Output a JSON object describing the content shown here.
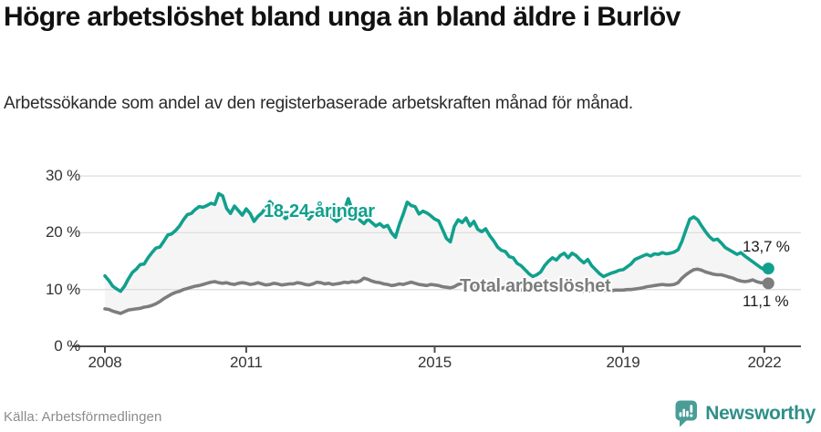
{
  "header": {
    "title": "Högre arbetslöshet bland unga än bland äldre i Burlöv",
    "subtitle": "Arbetssökande som andel av den registerbaserade arbetskraften månad för månad."
  },
  "footer": {
    "source": "Källa: Arbetsförmedlingen",
    "brand_name": "Newsworthy"
  },
  "colors": {
    "young_line": "#11a08d",
    "total_line": "#7d7d7d",
    "grid": "#dedede",
    "axis": "#4d4d4d",
    "between_fill": "#f5f5f5",
    "value_text": "#1a1a1a",
    "brand_icon": "#4a9d97",
    "brand_text": "#2f8f89"
  },
  "chart_data": {
    "type": "line",
    "title": "Högre arbetslöshet bland unga än bland äldre i Burlöv",
    "subtitle": "Arbetssökande som andel av den registerbaserade arbetskraften månad för månad.",
    "frequency": "monthly",
    "x_start": "2008-01",
    "x_end": "2022-02",
    "x_tick_years": [
      2008,
      2011,
      2015,
      2019,
      2022
    ],
    "y_ticks": [
      {
        "value": 0,
        "label": "0 %"
      },
      {
        "value": 10,
        "label": "10 %"
      },
      {
        "value": 20,
        "label": "20 %"
      },
      {
        "value": 30,
        "label": "30 %"
      }
    ],
    "ylim": [
      0,
      30
    ],
    "grid": true,
    "legend_position": "inline-labels",
    "fill_between_series": true,
    "series": [
      {
        "name": "18-24-åringar",
        "color": "#11a08d",
        "end_label": "13,7 %",
        "last_value": 13.7,
        "values": [
          12.4,
          11.6,
          10.6,
          10.1,
          9.7,
          10.6,
          11.9,
          13.0,
          13.6,
          14.4,
          14.5,
          15.6,
          16.5,
          17.3,
          17.5,
          18.5,
          19.6,
          19.8,
          20.4,
          21.2,
          22.3,
          23.2,
          23.4,
          24.1,
          24.6,
          24.5,
          24.8,
          25.2,
          25.0,
          26.9,
          26.5,
          24.3,
          23.4,
          24.7,
          23.9,
          23.1,
          24.2,
          23.4,
          22.0,
          22.9,
          23.5,
          24.5,
          25.5,
          24.8,
          23.8,
          23.2,
          22.5,
          23.0,
          23.8,
          24.2,
          23.5,
          23.0,
          22.4,
          23.2,
          24.0,
          23.4,
          22.8,
          23.3,
          22.6,
          22.0,
          22.5,
          24.0,
          26.0,
          24.0,
          23.0,
          22.2,
          21.6,
          22.4,
          21.8,
          21.2,
          21.6,
          21.0,
          21.3,
          20.0,
          19.2,
          21.5,
          23.3,
          25.4,
          24.8,
          24.6,
          23.3,
          23.8,
          23.5,
          23.0,
          22.4,
          22.1,
          20.6,
          19.0,
          18.4,
          21.1,
          22.3,
          21.8,
          22.6,
          21.2,
          22.0,
          20.6,
          20.2,
          20.7,
          19.5,
          18.6,
          17.5,
          16.9,
          16.7,
          15.8,
          15.6,
          14.6,
          14.2,
          13.5,
          12.8,
          12.3,
          12.6,
          13.1,
          14.2,
          15.0,
          15.6,
          15.2,
          16.0,
          16.4,
          15.6,
          16.4,
          16.0,
          15.3,
          14.7,
          15.3,
          14.2,
          13.5,
          12.8,
          12.3,
          12.6,
          12.9,
          13.1,
          13.4,
          13.5,
          14.0,
          14.5,
          15.3,
          15.6,
          15.9,
          16.2,
          15.9,
          16.3,
          16.2,
          16.5,
          16.3,
          16.4,
          16.6,
          17.0,
          18.5,
          20.5,
          22.4,
          22.8,
          22.3,
          21.2,
          20.2,
          19.3,
          18.7,
          18.9,
          18.2,
          17.4,
          17.0,
          16.6,
          16.2,
          16.5,
          15.9,
          15.4,
          14.9,
          14.4,
          13.9,
          13.5,
          13.7
        ]
      },
      {
        "name": "Total arbetslöshet",
        "color": "#7d7d7d",
        "end_label": "11,1 %",
        "last_value": 11.1,
        "values": [
          6.6,
          6.5,
          6.2,
          6.0,
          5.8,
          6.1,
          6.4,
          6.5,
          6.6,
          6.7,
          6.9,
          7.0,
          7.2,
          7.5,
          7.9,
          8.4,
          8.8,
          9.2,
          9.5,
          9.7,
          10.0,
          10.2,
          10.4,
          10.6,
          10.7,
          10.9,
          11.1,
          11.3,
          11.4,
          11.2,
          11.1,
          11.2,
          11.0,
          10.9,
          11.1,
          11.2,
          11.1,
          10.9,
          11.0,
          11.2,
          11.0,
          10.8,
          10.9,
          11.1,
          11.0,
          10.8,
          10.9,
          11.0,
          11.0,
          11.2,
          11.1,
          10.9,
          10.8,
          11.0,
          11.3,
          11.2,
          11.0,
          11.1,
          10.9,
          11.0,
          11.1,
          11.3,
          11.2,
          11.4,
          11.3,
          11.5,
          12.0,
          11.8,
          11.5,
          11.3,
          11.2,
          11.0,
          10.9,
          10.7,
          10.8,
          11.0,
          10.9,
          11.1,
          11.3,
          11.1,
          10.9,
          10.8,
          10.7,
          10.9,
          10.8,
          10.7,
          10.5,
          10.4,
          10.3,
          10.5,
          10.9,
          11.1,
          10.8,
          10.6,
          10.5,
          10.4,
          10.4,
          10.5,
          10.3,
          10.2,
          10.1,
          10.2,
          10.4,
          10.3,
          10.1,
          10.0,
          9.9,
          10.0,
          10.0,
          9.9,
          9.8,
          9.9,
          10.0,
          10.1,
          10.2,
          10.1,
          10.0,
          9.9,
          9.8,
          9.9,
          9.9,
          9.8,
          9.7,
          9.8,
          9.7,
          9.8,
          9.9,
          9.8,
          9.7,
          9.8,
          9.9,
          9.9,
          9.9,
          10.0,
          10.0,
          10.1,
          10.2,
          10.3,
          10.5,
          10.6,
          10.7,
          10.8,
          10.9,
          10.8,
          10.8,
          10.9,
          11.2,
          12.0,
          12.6,
          13.1,
          13.5,
          13.6,
          13.4,
          13.1,
          12.9,
          12.7,
          12.6,
          12.6,
          12.4,
          12.2,
          12.0,
          11.7,
          11.5,
          11.4,
          11.5,
          11.7,
          11.4,
          11.2,
          11.2,
          11.1
        ]
      }
    ]
  }
}
